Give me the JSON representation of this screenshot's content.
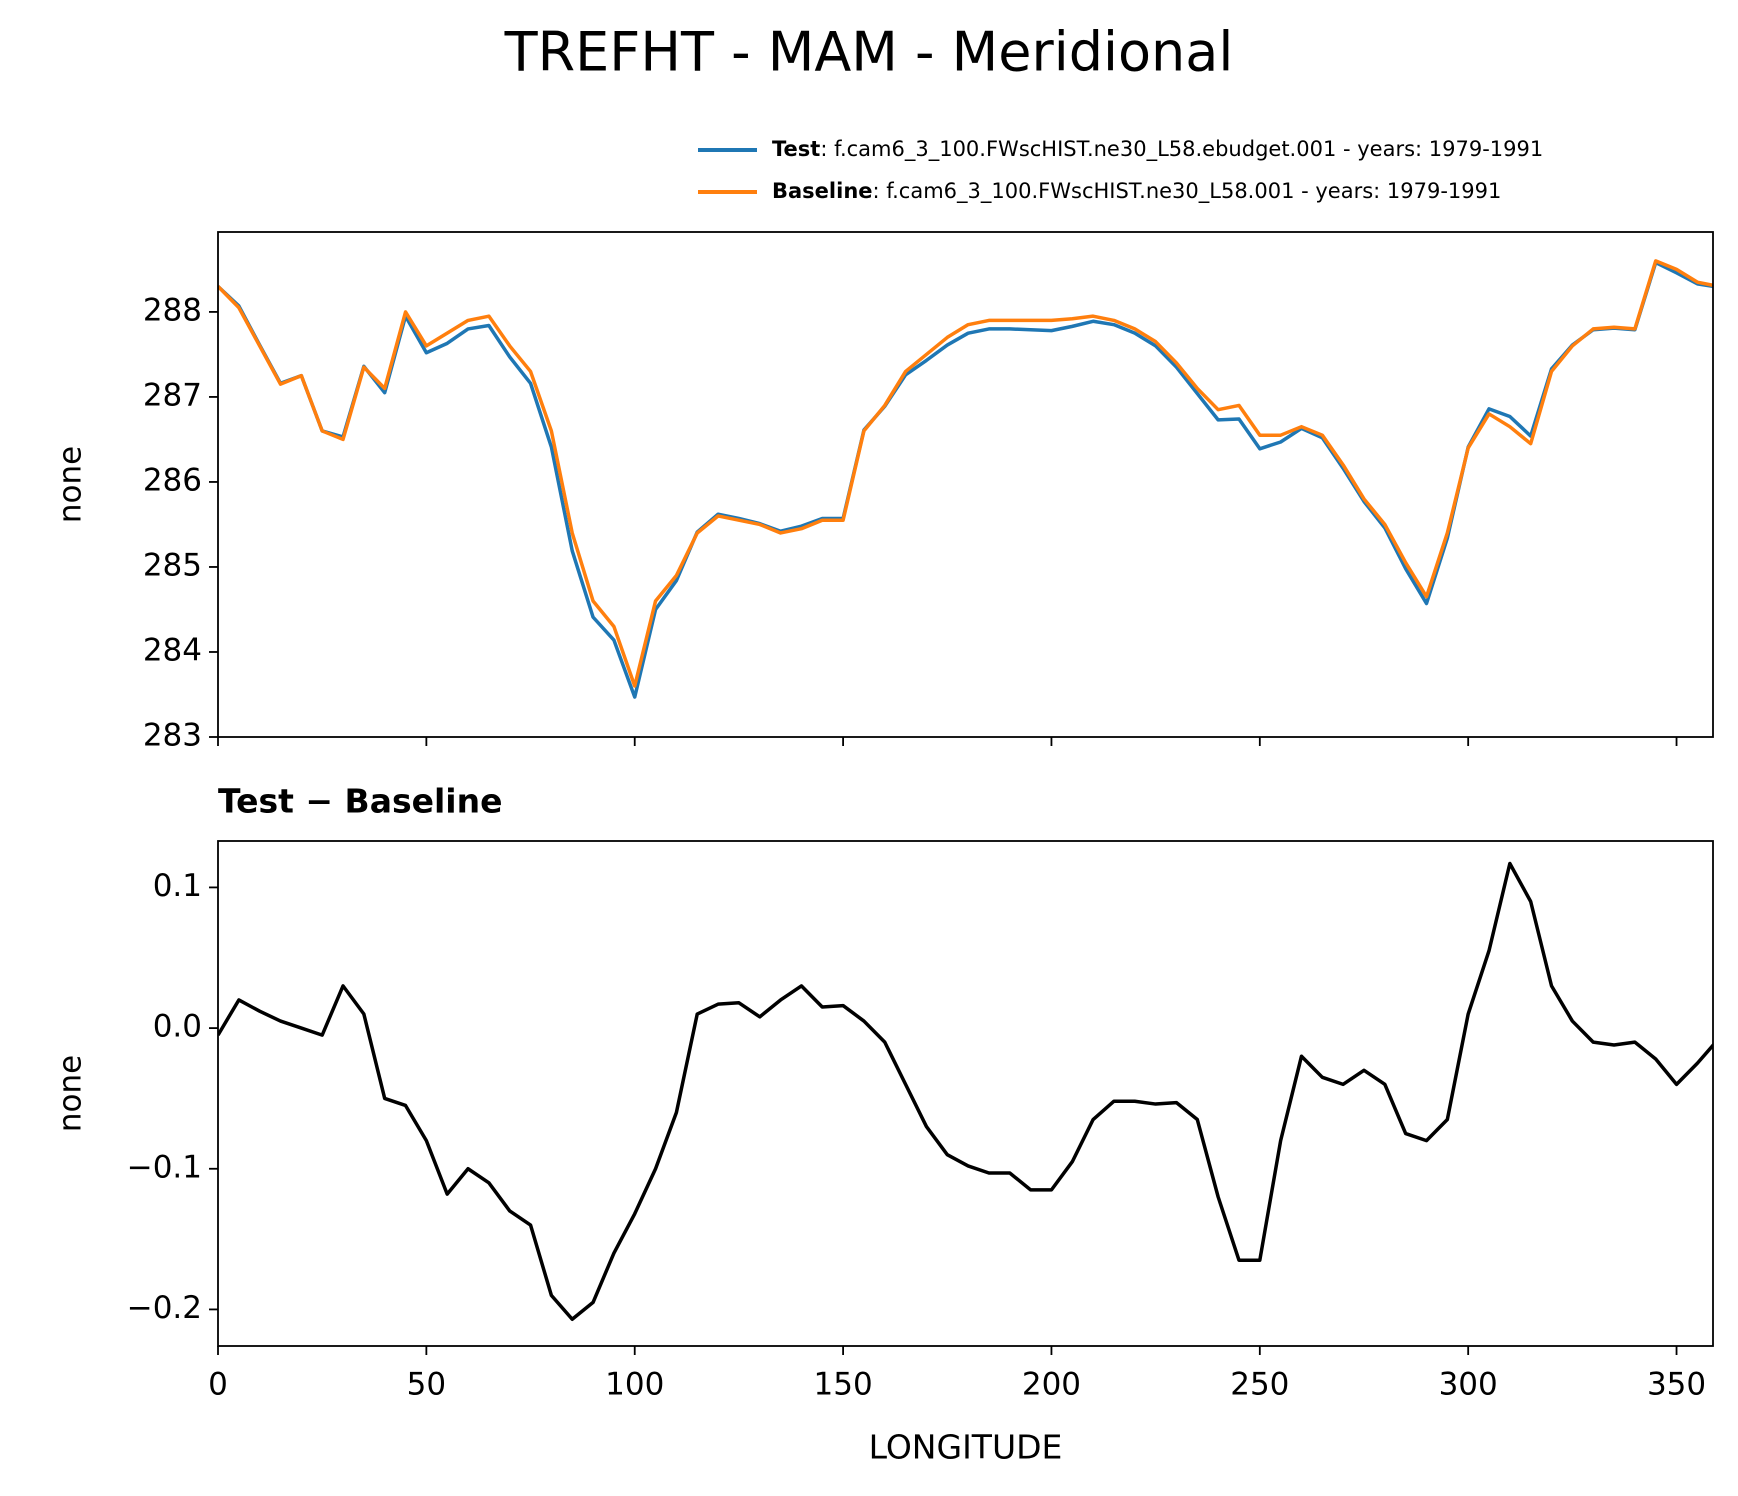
{
  "chart_data": [
    {
      "type": "line",
      "title": "TREFHT - MAM - Meridional",
      "ylabel": "none",
      "x": [
        0,
        5,
        10,
        15,
        20,
        25,
        30,
        35,
        40,
        45,
        50,
        55,
        60,
        65,
        70,
        75,
        80,
        85,
        90,
        95,
        100,
        105,
        110,
        115,
        120,
        125,
        130,
        135,
        140,
        145,
        150,
        155,
        160,
        165,
        170,
        175,
        180,
        185,
        190,
        195,
        200,
        205,
        210,
        215,
        220,
        225,
        230,
        235,
        240,
        245,
        250,
        255,
        260,
        265,
        270,
        275,
        280,
        285,
        290,
        295,
        300,
        305,
        310,
        315,
        320,
        325,
        330,
        335,
        340,
        345,
        350,
        355,
        360
      ],
      "series": [
        {
          "name": "Test",
          "description": ": f.cam6_3_100.FWscHIST.ne30_L58.ebudget.001 - years: 1979-1991",
          "color": "#1f77b4",
          "values": [
            288.3,
            288.07,
            287.61,
            287.16,
            287.25,
            286.6,
            286.53,
            287.36,
            287.05,
            287.95,
            287.52,
            287.63,
            287.8,
            287.84,
            287.47,
            287.16,
            286.41,
            285.19,
            284.41,
            284.14,
            283.47,
            284.5,
            284.84,
            285.41,
            285.62,
            285.57,
            285.51,
            285.42,
            285.48,
            285.57,
            285.57,
            286.61,
            286.89,
            287.26,
            287.43,
            287.61,
            287.75,
            287.8,
            287.8,
            287.79,
            287.78,
            287.83,
            287.89,
            287.85,
            287.75,
            287.6,
            287.35,
            287.04,
            286.73,
            286.74,
            286.39,
            286.47,
            286.63,
            286.52,
            286.16,
            285.77,
            285.46,
            284.98,
            284.57,
            285.34,
            286.41,
            286.86,
            286.77,
            286.54,
            287.33,
            287.61,
            287.79,
            287.81,
            287.79,
            288.58,
            288.46,
            288.33,
            288.29
          ]
        },
        {
          "name": "Baseline",
          "description": ": f.cam6_3_100.FWscHIST.ne30_L58.001 - years: 1979-1991",
          "color": "#ff7f0e",
          "values": [
            288.3,
            288.05,
            287.6,
            287.15,
            287.25,
            286.6,
            286.5,
            287.35,
            287.1,
            288.0,
            287.6,
            287.75,
            287.9,
            287.95,
            287.6,
            287.3,
            286.6,
            285.4,
            284.6,
            284.3,
            283.6,
            284.6,
            284.9,
            285.4,
            285.6,
            285.55,
            285.5,
            285.4,
            285.45,
            285.55,
            285.55,
            286.6,
            286.9,
            287.3,
            287.5,
            287.7,
            287.85,
            287.9,
            287.9,
            287.9,
            287.9,
            287.92,
            287.95,
            287.9,
            287.8,
            287.65,
            287.4,
            287.1,
            286.85,
            286.9,
            286.55,
            286.55,
            286.65,
            286.55,
            286.2,
            285.8,
            285.5,
            285.05,
            284.65,
            285.4,
            286.4,
            286.8,
            286.65,
            286.45,
            287.3,
            287.6,
            287.8,
            287.82,
            287.8,
            288.6,
            288.5,
            288.35,
            288.3
          ]
        }
      ],
      "xlim": [
        0,
        358.75
      ],
      "xticks": [
        0,
        50,
        100,
        150,
        200,
        250,
        300,
        350
      ],
      "show_xtick_labels": false,
      "ylim": [
        283,
        288.94
      ],
      "yticks": [
        283,
        284,
        285,
        286,
        287,
        288
      ],
      "legend": "upper right"
    },
    {
      "type": "line",
      "title": "Test − Baseline",
      "xlabel": "LONGITUDE",
      "ylabel": "none",
      "x": [
        0,
        5,
        10,
        15,
        20,
        25,
        30,
        35,
        40,
        45,
        50,
        55,
        60,
        65,
        70,
        75,
        80,
        85,
        90,
        95,
        100,
        105,
        110,
        115,
        120,
        125,
        130,
        135,
        140,
        145,
        150,
        155,
        160,
        165,
        170,
        175,
        180,
        185,
        190,
        195,
        200,
        205,
        210,
        215,
        220,
        225,
        230,
        235,
        240,
        245,
        250,
        255,
        260,
        265,
        270,
        275,
        280,
        285,
        290,
        295,
        300,
        305,
        310,
        315,
        320,
        325,
        330,
        335,
        340,
        345,
        350,
        355,
        360
      ],
      "values": [
        -0.005,
        0.02,
        0.012,
        0.005,
        0.0,
        -0.005,
        0.03,
        0.01,
        -0.05,
        -0.055,
        -0.08,
        -0.118,
        -0.1,
        -0.11,
        -0.13,
        -0.14,
        -0.19,
        -0.207,
        -0.195,
        -0.16,
        -0.132,
        -0.1,
        -0.06,
        0.01,
        0.017,
        0.018,
        0.008,
        0.02,
        0.03,
        0.015,
        0.016,
        0.005,
        -0.01,
        -0.04,
        -0.07,
        -0.09,
        -0.098,
        -0.103,
        -0.103,
        -0.115,
        -0.115,
        -0.095,
        -0.065,
        -0.052,
        -0.052,
        -0.054,
        -0.053,
        -0.065,
        -0.12,
        -0.165,
        -0.165,
        -0.08,
        -0.02,
        -0.035,
        -0.04,
        -0.03,
        -0.04,
        -0.075,
        -0.08,
        -0.065,
        0.01,
        0.055,
        0.117,
        0.09,
        0.03,
        0.005,
        -0.01,
        -0.012,
        -0.01,
        -0.022,
        -0.04,
        -0.025,
        -0.008
      ],
      "color": "#000000",
      "xlim": [
        0,
        358.75
      ],
      "xticks": [
        0,
        50,
        100,
        150,
        200,
        250,
        300,
        350
      ],
      "show_xtick_labels": true,
      "ylim": [
        -0.226,
        0.133
      ],
      "yticks": [
        {
          "value": -0.2,
          "label": "−0.2"
        },
        {
          "value": -0.1,
          "label": "−0.1"
        },
        {
          "value": 0.0,
          "label": "0.0"
        },
        0.1
      ]
    }
  ]
}
